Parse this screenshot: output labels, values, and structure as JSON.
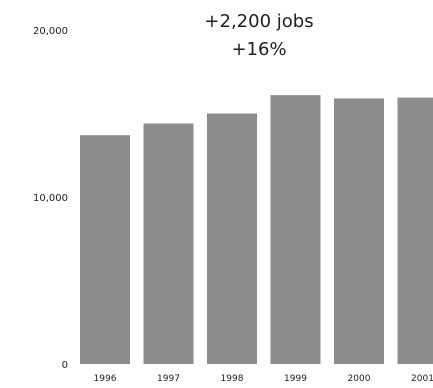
{
  "chart_data": {
    "type": "bar",
    "categories": [
      "1996",
      "1997",
      "1998",
      "1999",
      "2000",
      "2001"
    ],
    "values": [
      13700,
      14400,
      15000,
      16100,
      15900,
      15950
    ],
    "ylim": [
      0,
      20000
    ],
    "yticks": [
      0,
      10000,
      20000
    ],
    "ytick_labels": [
      "0",
      "10,000",
      "20,000"
    ],
    "annotation": [
      "+2,200 jobs",
      "+16%"
    ],
    "grid": false,
    "bar_color": "#8c8c8c"
  }
}
